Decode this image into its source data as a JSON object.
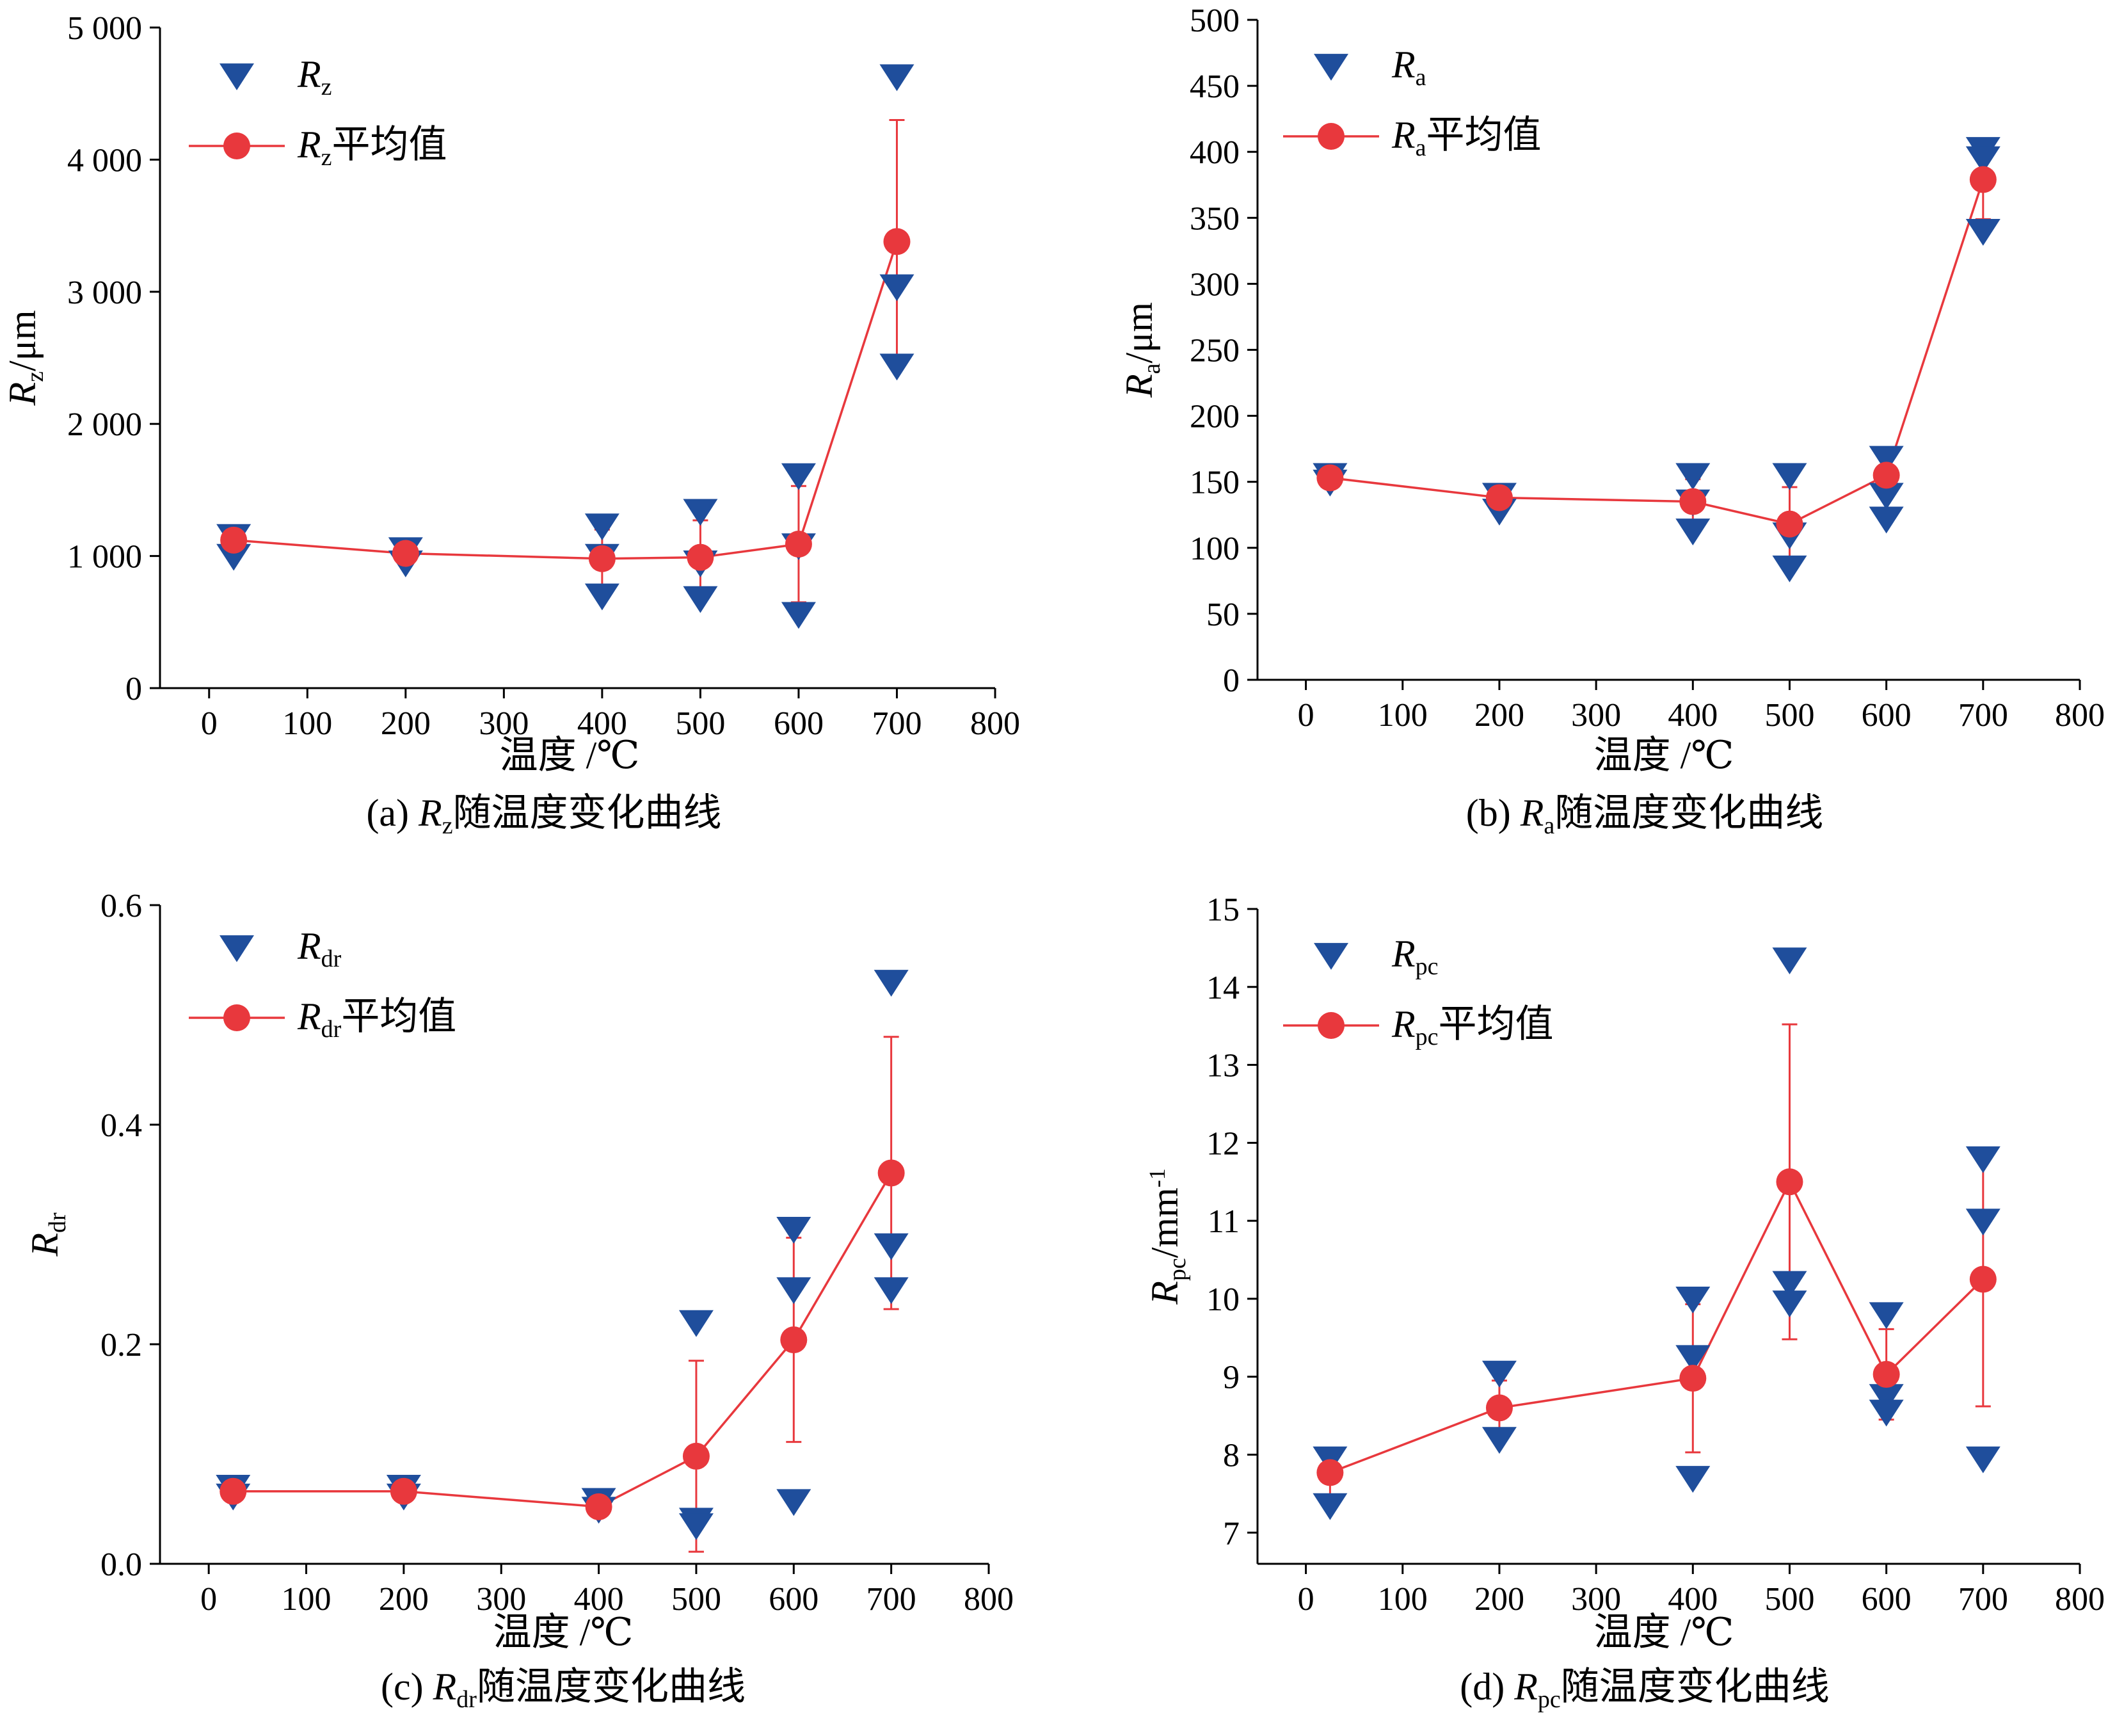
{
  "chart_data": [
    {
      "type": "scatter",
      "panel": "a",
      "caption": {
        "prefix": "(a) ",
        "symbol": "R",
        "sub": "z",
        "suffix": "随温度变化曲线"
      },
      "xlabel": "温度 /℃",
      "ylabel": {
        "symbol": "R",
        "sub": "z",
        "unit": "/μm"
      },
      "xlim": [
        -50,
        800
      ],
      "ylim": [
        0,
        5000
      ],
      "xticks": [
        0,
        100,
        200,
        300,
        400,
        500,
        600,
        700,
        800
      ],
      "xtick_labels": [
        "0",
        "100",
        "200",
        "300",
        "400",
        "500",
        "600",
        "700",
        "800"
      ],
      "yticks": [
        0,
        1000,
        2000,
        3000,
        4000,
        5000
      ],
      "ytick_labels": [
        "0",
        "1 000",
        "2 000",
        "3 000",
        "4 000",
        "5 000"
      ],
      "legend": [
        {
          "marker": "triangle-down",
          "symbol": "R",
          "sub": "z",
          "suffix": ""
        },
        {
          "marker": "circle-line",
          "symbol": "R",
          "sub": "z",
          "suffix": "平均值"
        }
      ],
      "legend_position": "top-left",
      "samples": [
        {
          "x": 25,
          "y": 1150
        },
        {
          "x": 25,
          "y": 1000
        },
        {
          "x": 200,
          "y": 1050
        },
        {
          "x": 200,
          "y": 950
        },
        {
          "x": 400,
          "y": 1230
        },
        {
          "x": 400,
          "y": 1000
        },
        {
          "x": 400,
          "y": 700
        },
        {
          "x": 500,
          "y": 1340
        },
        {
          "x": 500,
          "y": 950
        },
        {
          "x": 500,
          "y": 680
        },
        {
          "x": 600,
          "y": 1610
        },
        {
          "x": 600,
          "y": 1080
        },
        {
          "x": 600,
          "y": 560
        },
        {
          "x": 700,
          "y": 4630
        },
        {
          "x": 700,
          "y": 3040
        },
        {
          "x": 700,
          "y": 2440
        }
      ],
      "mean": [
        {
          "x": 25,
          "y": 1120,
          "err": 50
        },
        {
          "x": 200,
          "y": 1020,
          "err": 30
        },
        {
          "x": 400,
          "y": 980,
          "err": 220
        },
        {
          "x": 500,
          "y": 990,
          "err": 280
        },
        {
          "x": 600,
          "y": 1090,
          "err": 440
        },
        {
          "x": 700,
          "y": 3380,
          "err": 920
        }
      ],
      "colors": {
        "samples": "#1f4e9c",
        "mean": "#e8383d"
      }
    },
    {
      "type": "scatter",
      "panel": "b",
      "caption": {
        "prefix": "(b) ",
        "symbol": "R",
        "sub": "a",
        "suffix": "随温度变化曲线"
      },
      "xlabel": "温度 /℃",
      "ylabel": {
        "symbol": "R",
        "sub": "a",
        "unit": "/μm"
      },
      "xlim": [
        -50,
        800
      ],
      "ylim": [
        0,
        500
      ],
      "xticks": [
        0,
        100,
        200,
        300,
        400,
        500,
        600,
        700,
        800
      ],
      "xtick_labels": [
        "0",
        "100",
        "200",
        "300",
        "400",
        "500",
        "600",
        "700",
        "800"
      ],
      "yticks": [
        0,
        50,
        100,
        150,
        200,
        250,
        300,
        350,
        400,
        450,
        500
      ],
      "ytick_labels": [
        "0",
        "50",
        "100",
        "150",
        "200",
        "250",
        "300",
        "350",
        "400",
        "450",
        "500"
      ],
      "legend": [
        {
          "marker": "triangle-down",
          "symbol": "R",
          "sub": "a",
          "suffix": ""
        },
        {
          "marker": "circle-line",
          "symbol": "R",
          "sub": "a",
          "suffix": "平均值"
        }
      ],
      "legend_position": "top-left",
      "samples": [
        {
          "x": 25,
          "y": 155
        },
        {
          "x": 25,
          "y": 150
        },
        {
          "x": 200,
          "y": 140
        },
        {
          "x": 200,
          "y": 128
        },
        {
          "x": 400,
          "y": 155
        },
        {
          "x": 400,
          "y": 135
        },
        {
          "x": 400,
          "y": 113
        },
        {
          "x": 500,
          "y": 155
        },
        {
          "x": 500,
          "y": 110
        },
        {
          "x": 500,
          "y": 85
        },
        {
          "x": 600,
          "y": 168
        },
        {
          "x": 600,
          "y": 140
        },
        {
          "x": 600,
          "y": 122
        },
        {
          "x": 700,
          "y": 402
        },
        {
          "x": 700,
          "y": 395
        },
        {
          "x": 700,
          "y": 340
        }
      ],
      "mean": [
        {
          "x": 25,
          "y": 153,
          "err": 3
        },
        {
          "x": 200,
          "y": 138,
          "err": 5
        },
        {
          "x": 400,
          "y": 135,
          "err": 17
        },
        {
          "x": 500,
          "y": 118,
          "err": 28
        },
        {
          "x": 600,
          "y": 155,
          "err": 15
        },
        {
          "x": 700,
          "y": 379,
          "err": 30
        }
      ],
      "colors": {
        "samples": "#1f4e9c",
        "mean": "#e8383d"
      }
    },
    {
      "type": "scatter",
      "panel": "c",
      "caption": {
        "prefix": "(c) ",
        "symbol": "R",
        "sub": "dr",
        "suffix": "随温度变化曲线"
      },
      "xlabel": "温度 /℃",
      "ylabel": {
        "symbol": "R",
        "sub": "dr",
        "unit": ""
      },
      "xlim": [
        -50,
        800
      ],
      "ylim": [
        0,
        0.6
      ],
      "xticks": [
        0,
        100,
        200,
        300,
        400,
        500,
        600,
        700,
        800
      ],
      "xtick_labels": [
        "0",
        "100",
        "200",
        "300",
        "400",
        "500",
        "600",
        "700",
        "800"
      ],
      "yticks": [
        0,
        0.2,
        0.4,
        0.6
      ],
      "ytick_labels": [
        "0.0",
        "0.2",
        "0.4",
        "0.6"
      ],
      "legend": [
        {
          "marker": "triangle-down",
          "symbol": "R",
          "sub": "dr",
          "suffix": ""
        },
        {
          "marker": "circle-line",
          "symbol": "R",
          "sub": "dr",
          "suffix": "平均值"
        }
      ],
      "legend_position": "top-left",
      "samples": [
        {
          "x": 25,
          "y": 0.07
        },
        {
          "x": 25,
          "y": 0.062
        },
        {
          "x": 200,
          "y": 0.07
        },
        {
          "x": 200,
          "y": 0.062
        },
        {
          "x": 400,
          "y": 0.058
        },
        {
          "x": 400,
          "y": 0.05
        },
        {
          "x": 500,
          "y": 0.22
        },
        {
          "x": 500,
          "y": 0.04
        },
        {
          "x": 500,
          "y": 0.035
        },
        {
          "x": 600,
          "y": 0.305
        },
        {
          "x": 600,
          "y": 0.25
        },
        {
          "x": 600,
          "y": 0.057
        },
        {
          "x": 700,
          "y": 0.53
        },
        {
          "x": 700,
          "y": 0.29
        },
        {
          "x": 700,
          "y": 0.25
        }
      ],
      "mean": [
        {
          "x": 25,
          "y": 0.066,
          "err": 0.004
        },
        {
          "x": 200,
          "y": 0.066,
          "err": 0.004
        },
        {
          "x": 400,
          "y": 0.052,
          "err": 0.004
        },
        {
          "x": 500,
          "y": 0.098,
          "err": 0.087
        },
        {
          "x": 600,
          "y": 0.204,
          "err": 0.093
        },
        {
          "x": 700,
          "y": 0.356,
          "err": 0.124
        }
      ],
      "colors": {
        "samples": "#1f4e9c",
        "mean": "#e8383d"
      }
    },
    {
      "type": "scatter",
      "panel": "d",
      "caption": {
        "prefix": "(d) ",
        "symbol": "R",
        "sub": "pc",
        "suffix": "随温度变化曲线"
      },
      "xlabel": "温度 /℃",
      "ylabel": {
        "symbol": "R",
        "sub": "pc",
        "unit": "/mm",
        "sup": "-1"
      },
      "xlim": [
        -50,
        800
      ],
      "ylim": [
        6.6,
        15
      ],
      "xticks": [
        0,
        100,
        200,
        300,
        400,
        500,
        600,
        700,
        800
      ],
      "xtick_labels": [
        "0",
        "100",
        "200",
        "300",
        "400",
        "500",
        "600",
        "700",
        "800"
      ],
      "yticks": [
        7,
        8,
        9,
        10,
        11,
        12,
        13,
        14,
        15
      ],
      "ytick_labels": [
        "7",
        "8",
        "9",
        "10",
        "11",
        "12",
        "13",
        "14",
        "15"
      ],
      "legend": [
        {
          "marker": "triangle-down",
          "symbol": "R",
          "sub": "pc",
          "suffix": ""
        },
        {
          "marker": "circle-line",
          "symbol": "R",
          "sub": "pc",
          "suffix": "平均值"
        }
      ],
      "legend_position": "top-left",
      "samples": [
        {
          "x": 25,
          "y": 7.95
        },
        {
          "x": 25,
          "y": 7.35
        },
        {
          "x": 200,
          "y": 9.05
        },
        {
          "x": 200,
          "y": 8.2
        },
        {
          "x": 400,
          "y": 10.0
        },
        {
          "x": 400,
          "y": 9.25
        },
        {
          "x": 400,
          "y": 7.7
        },
        {
          "x": 500,
          "y": 14.35
        },
        {
          "x": 500,
          "y": 10.2
        },
        {
          "x": 500,
          "y": 9.95
        },
        {
          "x": 600,
          "y": 9.8
        },
        {
          "x": 600,
          "y": 8.75
        },
        {
          "x": 600,
          "y": 8.55
        },
        {
          "x": 700,
          "y": 11.8
        },
        {
          "x": 700,
          "y": 11.0
        },
        {
          "x": 700,
          "y": 7.95
        }
      ],
      "mean": [
        {
          "x": 25,
          "y": 7.77,
          "err": 0.28
        },
        {
          "x": 200,
          "y": 8.6,
          "err": 0.35
        },
        {
          "x": 400,
          "y": 8.98,
          "err": 0.95
        },
        {
          "x": 500,
          "y": 11.5,
          "err": 2.02
        },
        {
          "x": 600,
          "y": 9.03,
          "err": 0.58
        },
        {
          "x": 700,
          "y": 10.25,
          "err": 1.63
        }
      ],
      "colors": {
        "samples": "#1f4e9c",
        "mean": "#e8383d"
      }
    }
  ]
}
